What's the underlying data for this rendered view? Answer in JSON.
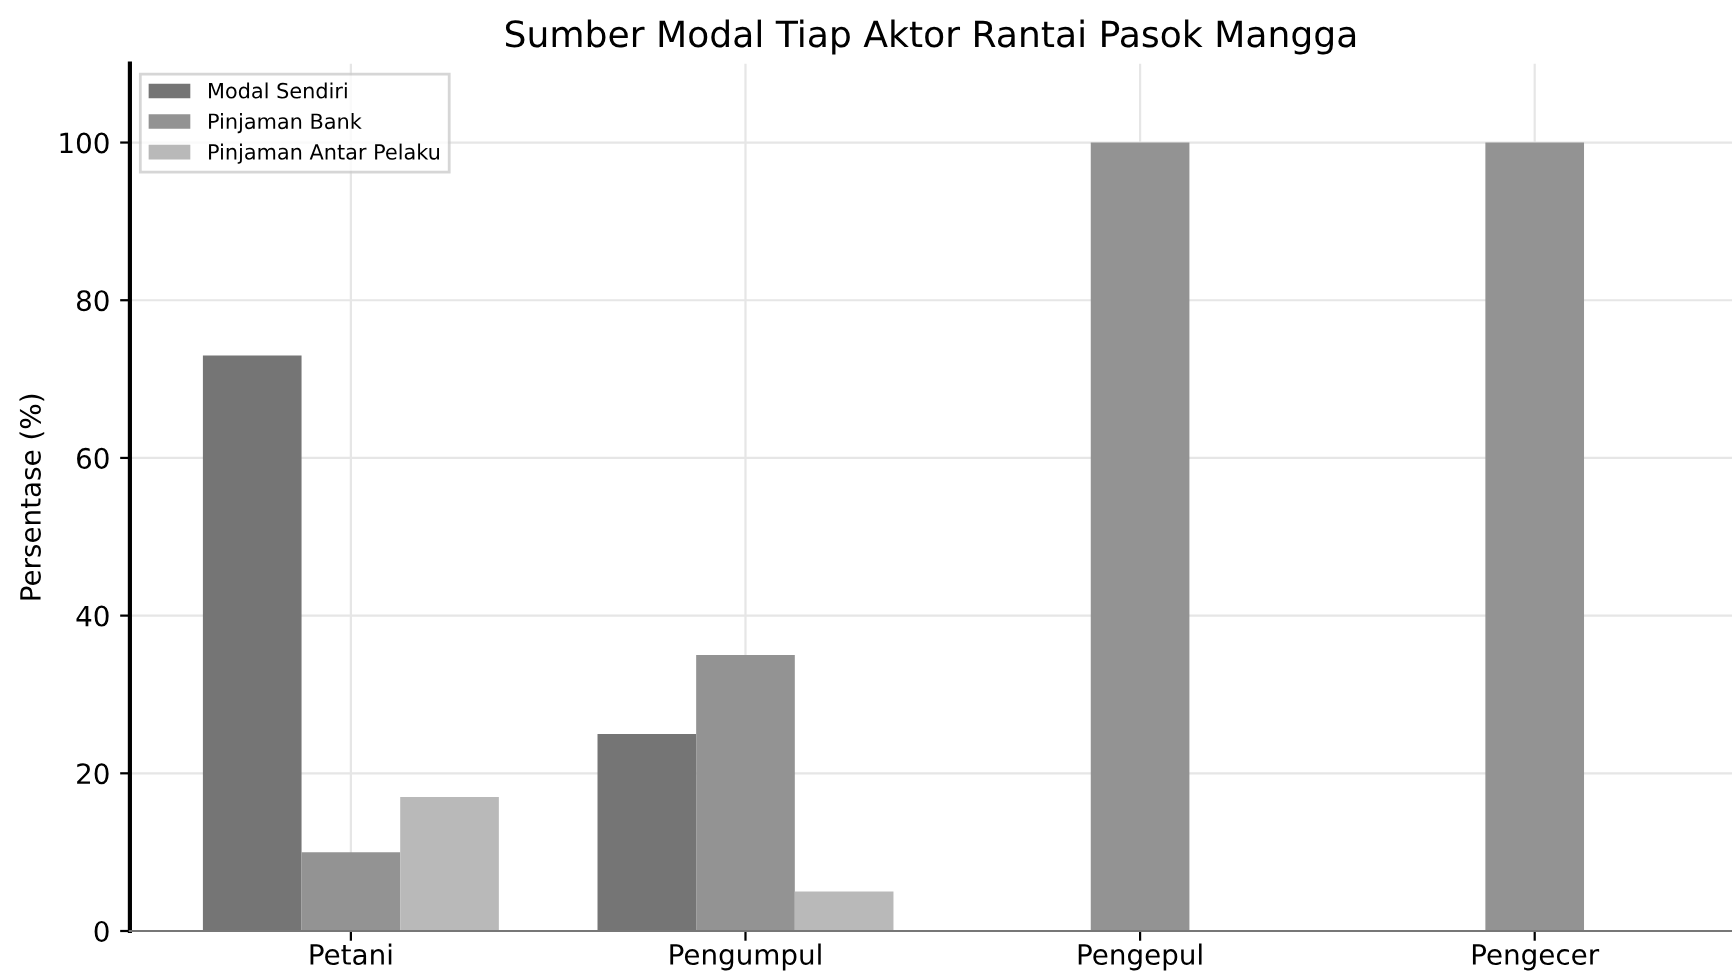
{
  "chart_data": {
    "type": "bar",
    "title": "Sumber Modal Tiap Aktor Rantai Pasok Mangga",
    "ylabel": "Persentase (%)",
    "categories": [
      "Petani",
      "Pengumpul",
      "Pengepul",
      "Pengecer"
    ],
    "series": [
      {
        "name": "Modal Sendiri",
        "color": "#757575",
        "values": [
          73,
          25,
          0,
          0
        ]
      },
      {
        "name": "Pinjaman Bank",
        "color": "#939393",
        "values": [
          10,
          35,
          100,
          100
        ]
      },
      {
        "name": "Pinjaman Antar Pelaku",
        "color": "#b9b9b9",
        "values": [
          17,
          5,
          0,
          0
        ]
      }
    ],
    "ylim": [
      0,
      110
    ],
    "yticks": [
      0,
      20,
      40,
      60,
      80,
      100
    ],
    "grid": true,
    "legend": "top left"
  }
}
